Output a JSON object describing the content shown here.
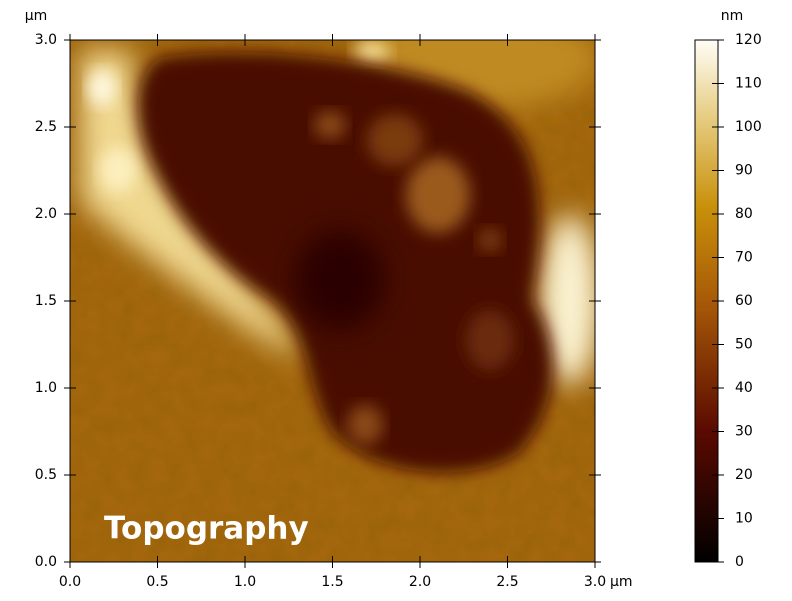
{
  "chart_data": {
    "type": "image",
    "annotation": "Topography",
    "x_unit": "µm",
    "y_unit": "µm",
    "xlim": [
      0,
      3
    ],
    "ylim": [
      0,
      3
    ],
    "xticks": [
      {
        "value": 0,
        "label": "0.0"
      },
      {
        "value": 0.5,
        "label": "0.5"
      },
      {
        "value": 1,
        "label": "1.0"
      },
      {
        "value": 1.5,
        "label": "1.5"
      },
      {
        "value": 2,
        "label": "2.0"
      },
      {
        "value": 2.5,
        "label": "2.5"
      },
      {
        "value": 3,
        "label": "3.0"
      }
    ],
    "yticks": [
      {
        "value": 0,
        "label": "0.0"
      },
      {
        "value": 0.5,
        "label": "0.5"
      },
      {
        "value": 1,
        "label": "1.0"
      },
      {
        "value": 1.5,
        "label": "1.5"
      },
      {
        "value": 2,
        "label": "2.0"
      },
      {
        "value": 2.5,
        "label": "2.5"
      },
      {
        "value": 3,
        "label": "3.0"
      }
    ],
    "colorbar": {
      "unit": "nm",
      "lim": [
        0,
        120
      ],
      "ticks": [
        0,
        10,
        20,
        30,
        40,
        50,
        60,
        70,
        80,
        90,
        100,
        110,
        120
      ]
    }
  }
}
